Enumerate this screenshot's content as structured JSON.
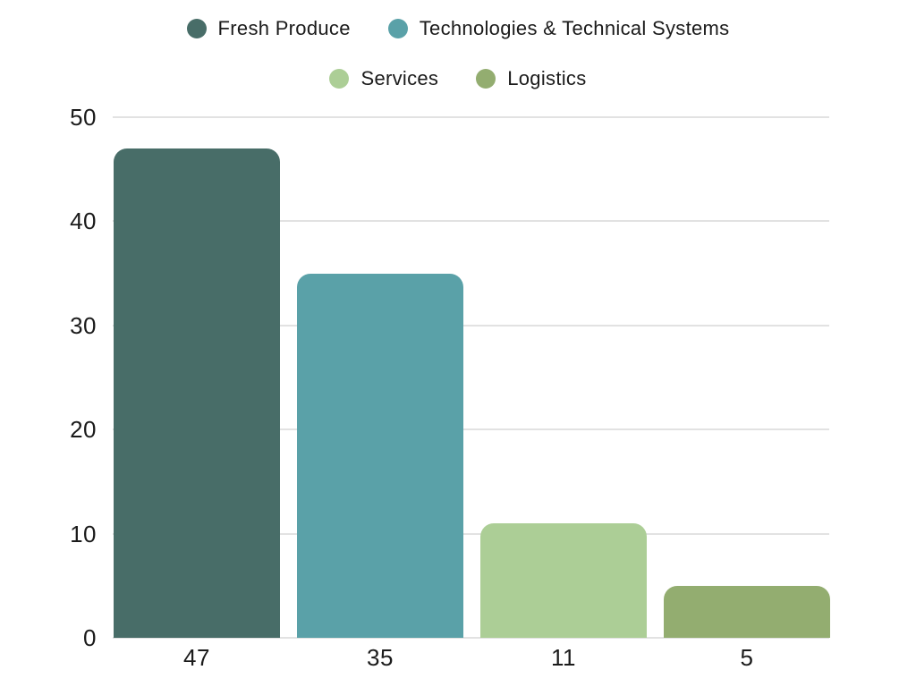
{
  "page": {
    "background": "#ffffff",
    "text_color": "#1b1b1b",
    "grid_color": "#e2e2e2"
  },
  "legend": {
    "items": [
      {
        "label": "Fresh Produce",
        "color": "#486D68"
      },
      {
        "label": "Technologies & Technical Systems",
        "color": "#5AA1A8"
      },
      {
        "label": "Services",
        "color": "#ACCE96"
      },
      {
        "label": "Logistics",
        "color": "#93AD70"
      }
    ]
  },
  "chart_data": {
    "type": "bar",
    "title": "",
    "xlabel": "",
    "ylabel": "",
    "categories": [
      "47",
      "35",
      "11",
      "5"
    ],
    "values": [
      47,
      35,
      11,
      5
    ],
    "series_names": [
      "Fresh Produce",
      "Technologies & Technical Systems",
      "Services",
      "Logistics"
    ],
    "bar_colors": [
      "#486D68",
      "#5AA1A8",
      "#ACCE96",
      "#93AD70"
    ],
    "ylim": [
      0,
      50
    ],
    "yticks": [
      0,
      10,
      20,
      30,
      40,
      50
    ],
    "grid": "horizontal-only",
    "legend_position": "top-center",
    "bar_value_labels_position": "below-axis"
  }
}
